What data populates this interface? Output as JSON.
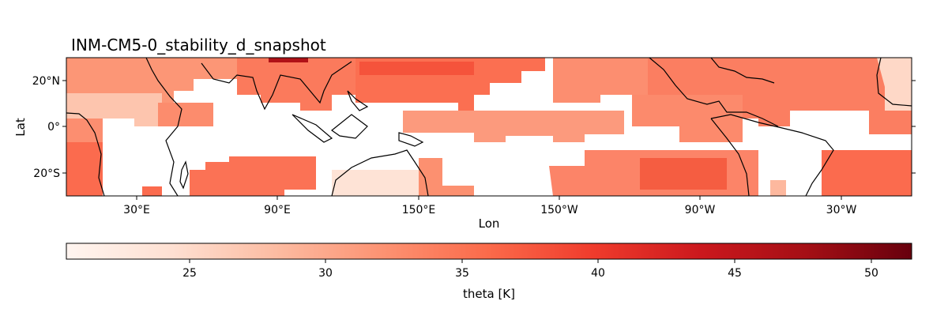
{
  "title": "INM-CM5-0_stability_d_snapshot",
  "map": {
    "xlabel": "Lon",
    "ylabel": "Lat",
    "lon_ticks": [
      "30°E",
      "90°E",
      "150°E",
      "150°W",
      "90°W",
      "30°W"
    ],
    "lat_ticks": [
      "20°N",
      "0°",
      "20°S"
    ],
    "extent": {
      "lon_min": 0,
      "lon_max": 360,
      "lat_min": -30,
      "lat_max": 30
    }
  },
  "colorbar": {
    "label": "theta [K]",
    "ticks": [
      "25",
      "30",
      "35",
      "40",
      "45",
      "50"
    ],
    "range": [
      20.5,
      51.5
    ],
    "colormap": "Reds",
    "colors": [
      "#fff5f0",
      "#fee0d2",
      "#fcbba1",
      "#fc9272",
      "#fb6a4a",
      "#ef3b2c",
      "#cb181d",
      "#a50f15",
      "#67000d"
    ]
  }
}
